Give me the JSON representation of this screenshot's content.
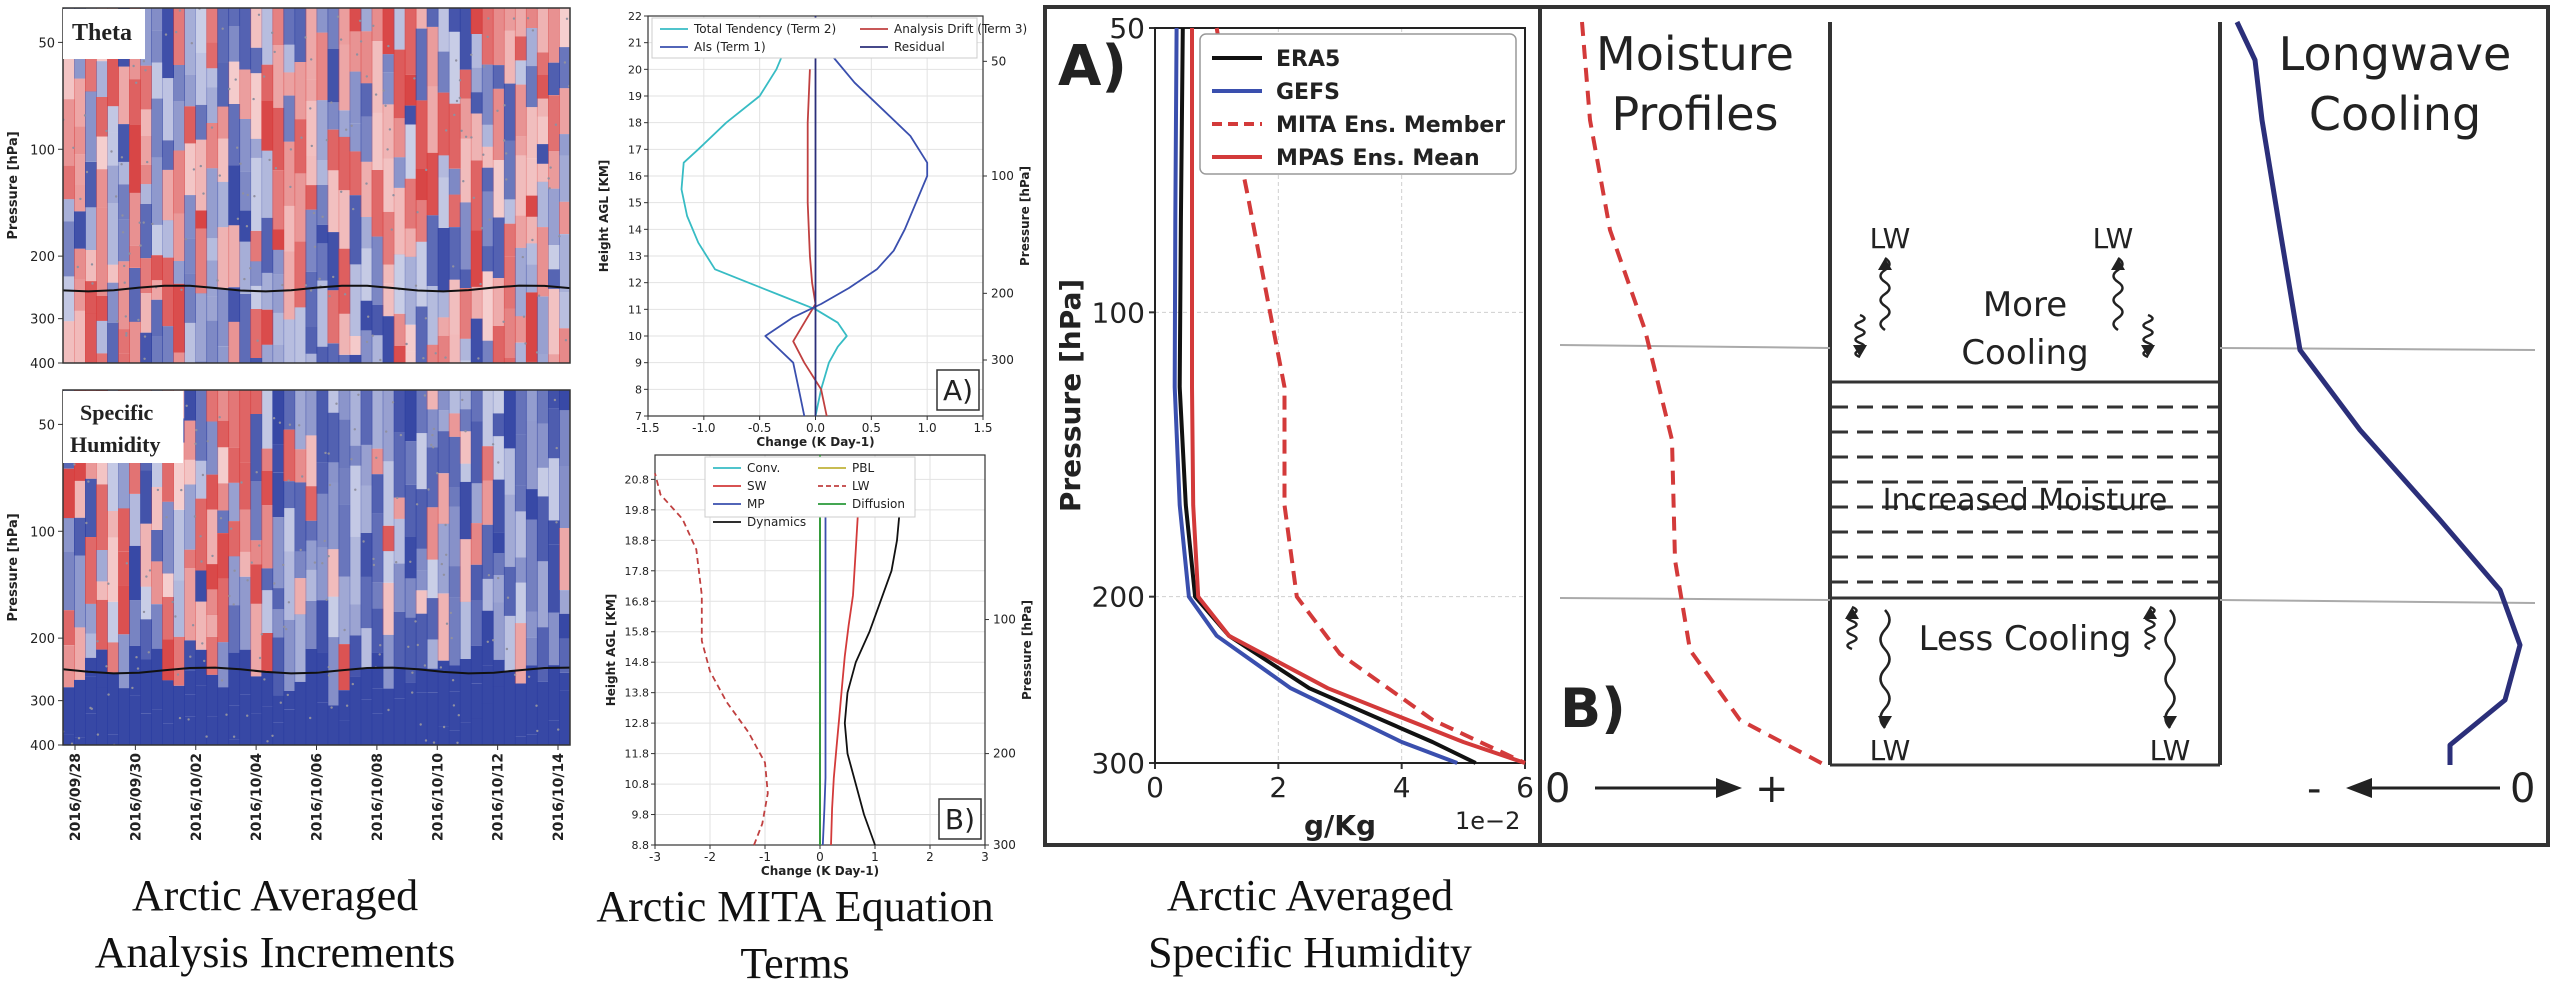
{
  "captions": {
    "increments": [
      "Arctic Averaged",
      "Analysis Increments"
    ],
    "mita": [
      "Arctic MITA Equation",
      "Terms"
    ],
    "humidity": [
      "Arctic Averaged",
      "Specific Humidity"
    ]
  },
  "colors": {
    "red": "#d33a3a",
    "blue": "#3a4fae",
    "cyan": "#37bcc4",
    "navy": "#2b2f7a",
    "green": "#2a9a3a",
    "olive": "#c0b23a",
    "black": "#111111",
    "dark_red": "#c04040"
  },
  "chart_data": [
    {
      "type": "heatmap",
      "title": "Theta",
      "ylabel": "Pressure [hPa]",
      "yticks": [
        50,
        100,
        200,
        300,
        400
      ],
      "colormap": "red-white-blue (diverging)",
      "overlay": "black tropopause line near 330 hPa; dotted stippling"
    },
    {
      "type": "heatmap",
      "title": "Specific Humidity",
      "title_lines": [
        "Specific",
        "Humidity"
      ],
      "ylabel": "Pressure [hPa]",
      "yticks": [
        50,
        100,
        200,
        300,
        400
      ],
      "xticks": [
        "2016/09/28",
        "2016/09/30",
        "2016/10/02",
        "2016/10/04",
        "2016/10/06",
        "2016/10/08",
        "2016/10/10",
        "2016/10/12",
        "2016/10/14"
      ],
      "colormap": "red-white-blue (diverging)"
    },
    {
      "type": "line",
      "panel_label": "A)",
      "xlabel": "Change (K Day-1)",
      "ylabel": "Height AGL [KM]",
      "y2label": "Pressure [hPa]",
      "xlim": [
        -1.5,
        1.5
      ],
      "ylim": [
        7,
        22
      ],
      "xticks": [
        "-1.5",
        "-1.0",
        "-0.5",
        "0.0",
        "0.5",
        "1.0",
        "1.5"
      ],
      "yticks": [
        "7",
        "8",
        "9",
        "10",
        "11",
        "12",
        "13",
        "14",
        "15",
        "16",
        "17",
        "18",
        "19",
        "20",
        "21",
        "22"
      ],
      "y2ticks": [
        {
          "h": 20.3,
          "label": "50"
        },
        {
          "h": 16.0,
          "label": "100"
        },
        {
          "h": 11.6,
          "label": "200"
        },
        {
          "h": 9.1,
          "label": "300"
        }
      ],
      "series": [
        {
          "name": "Total Tendency (Term 2)",
          "color": "cyan",
          "x": [
            0.0,
            0.05,
            0.12,
            0.2,
            0.28,
            0.2,
            0.0,
            -0.3,
            -0.6,
            -0.9,
            -1.05,
            -1.15,
            -1.2,
            -1.18,
            -1.05,
            -0.8,
            -0.5,
            -0.35,
            -0.25
          ],
          "y": [
            7.0,
            8.0,
            9.0,
            9.6,
            10.0,
            10.5,
            11.0,
            11.5,
            12.0,
            12.5,
            13.5,
            14.5,
            15.5,
            16.5,
            17.0,
            18.0,
            19.0,
            20.0,
            21.0
          ]
        },
        {
          "name": "Analysis Drift (Term 3)",
          "color": "dark_red",
          "x": [
            0.1,
            0.05,
            -0.1,
            -0.2,
            -0.1,
            0.0,
            -0.03,
            -0.05,
            -0.06,
            -0.07,
            -0.07,
            -0.07,
            -0.07,
            -0.06,
            -0.05
          ],
          "y": [
            7.0,
            8.0,
            9.0,
            9.8,
            10.5,
            11.2,
            12.0,
            13.0,
            14.0,
            15.0,
            16.0,
            17.0,
            18.0,
            19.0,
            20.0
          ]
        },
        {
          "name": "AIs (Term 1)",
          "color": "blue",
          "x": [
            -0.1,
            -0.15,
            -0.2,
            -0.45,
            -0.2,
            0.05,
            0.3,
            0.55,
            0.7,
            0.8,
            0.9,
            1.0,
            1.0,
            0.85,
            0.6,
            0.35,
            0.15,
            0.05
          ],
          "y": [
            7.0,
            8.0,
            9.0,
            10.0,
            10.7,
            11.2,
            11.8,
            12.5,
            13.2,
            14.0,
            15.0,
            16.0,
            16.5,
            17.5,
            18.5,
            19.5,
            20.5,
            21.5
          ]
        },
        {
          "name": "Residual",
          "color": "navy",
          "x": [
            0.0,
            0.0
          ],
          "y": [
            7.0,
            22.0
          ]
        }
      ]
    },
    {
      "type": "line",
      "panel_label": "B)",
      "xlabel": "Change (K Day-1)",
      "ylabel": "Height AGL [KM]",
      "y2label": "Pressure [hPa]",
      "xlim": [
        -3,
        3
      ],
      "ylim": [
        8.8,
        21.6
      ],
      "xticks": [
        "-3",
        "-2",
        "-1",
        "0",
        "1",
        "2",
        "3"
      ],
      "yticks": [
        "8.8",
        "9.8",
        "10.8",
        "11.8",
        "12.8",
        "13.8",
        "14.8",
        "15.8",
        "16.8",
        "17.8",
        "18.8",
        "19.8",
        "20.8"
      ],
      "y2ticks": [
        {
          "h": 16.2,
          "label": "100"
        },
        {
          "h": 11.8,
          "label": "200"
        },
        {
          "h": 8.8,
          "label": "300"
        }
      ],
      "series": [
        {
          "name": "Conv.",
          "color": "cyan",
          "x": [
            0.0,
            0.0
          ],
          "y": [
            8.8,
            21.6
          ]
        },
        {
          "name": "PBL",
          "color": "olive",
          "x": [
            0.0,
            0.0
          ],
          "y": [
            8.8,
            21.6
          ]
        },
        {
          "name": "SW",
          "color": "red",
          "x": [
            0.2,
            0.22,
            0.25,
            0.3,
            0.35,
            0.4,
            0.45,
            0.52,
            0.6,
            0.65,
            0.7
          ],
          "y": [
            8.8,
            10.0,
            11.0,
            12.0,
            13.0,
            14.0,
            15.0,
            16.0,
            17.0,
            18.5,
            20.0
          ]
        },
        {
          "name": "LW",
          "color": "dark_red",
          "dash": true,
          "x": [
            -1.2,
            -1.05,
            -0.95,
            -1.0,
            -1.3,
            -1.7,
            -2.0,
            -2.15,
            -2.15,
            -2.25,
            -2.5,
            -2.9,
            -3.0
          ],
          "y": [
            8.8,
            9.5,
            10.5,
            11.5,
            12.5,
            13.5,
            14.5,
            15.5,
            17.0,
            18.5,
            19.5,
            20.3,
            21.0
          ]
        },
        {
          "name": "MP",
          "color": "blue",
          "x": [
            0.05,
            0.08,
            0.1,
            0.1,
            0.1,
            0.1,
            0.1,
            0.1
          ],
          "y": [
            8.8,
            10.0,
            11.0,
            12.0,
            13.0,
            14.5,
            17.0,
            20.0
          ]
        },
        {
          "name": "Diffusion",
          "color": "green",
          "x": [
            0.0,
            0.0
          ],
          "y": [
            8.8,
            21.6
          ]
        },
        {
          "name": "Dynamics",
          "color": "black",
          "x": [
            1.0,
            0.8,
            0.65,
            0.5,
            0.45,
            0.5,
            0.65,
            0.9,
            1.1,
            1.3,
            1.4,
            1.45,
            1.4,
            1.3
          ],
          "y": [
            8.8,
            9.8,
            10.8,
            11.8,
            12.8,
            13.8,
            14.8,
            15.8,
            16.8,
            17.8,
            18.8,
            19.8,
            20.8,
            21.4
          ]
        }
      ]
    },
    {
      "type": "line",
      "panel_label": "A)",
      "xlabel": "g/Kg",
      "ylabel": "Pressure [hPa]",
      "x_offset_label": "1e−2",
      "xlim": [
        0,
        6
      ],
      "ylim": [
        300,
        50
      ],
      "yscale": "log",
      "xticks": [
        0,
        2,
        4,
        6
      ],
      "yticks": [
        50,
        100,
        200,
        300
      ],
      "grid": true,
      "legend_position": "top-right",
      "series": [
        {
          "name": "ERA5",
          "color": "black",
          "x": [
            0.45,
            0.42,
            0.4,
            0.5,
            0.65,
            1.2,
            2.5,
            4.5,
            5.2
          ],
          "y": [
            50,
            80,
            120,
            160,
            200,
            220,
            250,
            285,
            300
          ]
        },
        {
          "name": "GEFS",
          "color": "blue",
          "x": [
            0.35,
            0.33,
            0.32,
            0.4,
            0.55,
            1.0,
            2.2,
            4.0,
            4.9
          ],
          "y": [
            50,
            80,
            120,
            160,
            200,
            220,
            250,
            285,
            300
          ]
        },
        {
          "name": "MITA Ens. Member",
          "color": "red",
          "dash": true,
          "x": [
            1.0,
            1.2,
            1.5,
            1.8,
            2.1,
            2.1,
            2.3,
            3.0,
            4.5,
            6.0
          ],
          "y": [
            50,
            60,
            75,
            95,
            120,
            160,
            200,
            230,
            270,
            300
          ]
        },
        {
          "name": "MPAS Ens. Mean",
          "color": "red",
          "x": [
            0.6,
            0.6,
            0.6,
            0.62,
            0.7,
            1.2,
            2.8,
            5.0,
            6.0
          ],
          "y": [
            50,
            80,
            120,
            160,
            200,
            220,
            250,
            285,
            300
          ]
        }
      ]
    },
    {
      "type": "diagram",
      "panel_label": "B)",
      "moisture_title": [
        "Moisture",
        "Profiles"
      ],
      "longwave_title": [
        "Longwave",
        "Cooling"
      ],
      "zero_left": "0",
      "plus": "+",
      "minus": "-",
      "zero_right": "0",
      "more_cooling": [
        "More",
        "Cooling"
      ],
      "increased_moisture": "Increased Moisture",
      "less_cooling": "Less Cooling",
      "lw": "LW"
    }
  ]
}
